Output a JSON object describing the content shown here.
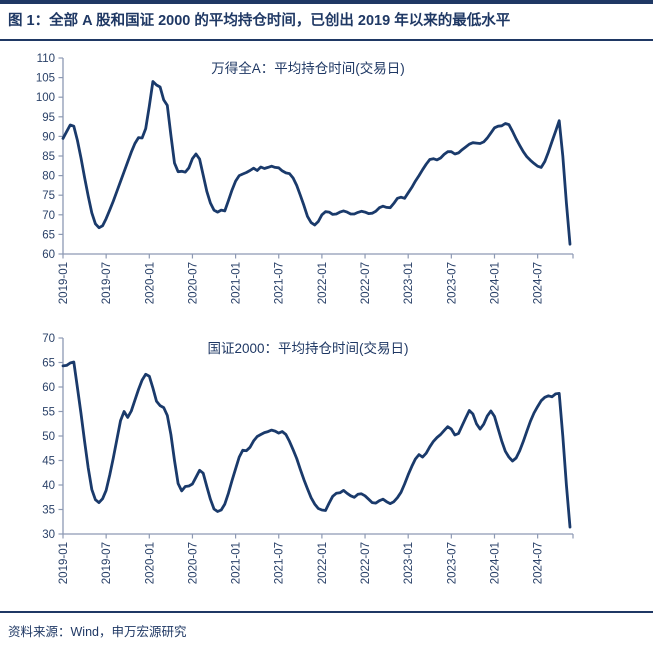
{
  "header": {
    "figure_title": "图 1：全部 A 股和国证 2000 的平均持仓时间，已创出 2019 年以来的最低水平"
  },
  "footer": {
    "source": "资料来源：Wind，申万宏源研究"
  },
  "colors": {
    "navy": "#1f3864",
    "line": "#1a3a6b",
    "axis": "#8d99b3",
    "tick_text": "#2b4269"
  },
  "chart_data": [
    {
      "type": "line",
      "title": "万得全A：平均持仓时间(交易日)",
      "ylabel": "",
      "xlabel": "",
      "ylim": [
        60,
        110
      ],
      "ytick_step": 5,
      "grid": false,
      "legend_position": "top-center-inside",
      "x_tick_labels": [
        "2019-01",
        "2019-07",
        "2020-01",
        "2020-07",
        "2021-01",
        "2021-07",
        "2022-01",
        "2022-07",
        "2023-01",
        "2023-07",
        "2024-01",
        "2024-07"
      ],
      "x_tick_every_n_points": 12,
      "series": [
        {
          "name": "万得全A：平均持仓时间(交易日)",
          "values": [
            89.5,
            91.2,
            92.9,
            92.6,
            89,
            84.5,
            79.5,
            74.8,
            70.5,
            67.7,
            66.7,
            67.2,
            69,
            71.2,
            73.5,
            76,
            78.5,
            81,
            83.5,
            86,
            88.2,
            89.7,
            89.6,
            92,
            97.7,
            104,
            103.1,
            102.6,
            99.3,
            97.9,
            90.3,
            83.2,
            81,
            81.1,
            80.9,
            82,
            84.3,
            85.5,
            84.2,
            80.1,
            76,
            73,
            71.2,
            70.7,
            71.2,
            71,
            73.6,
            76.3,
            78.6,
            80,
            80.4,
            80.8,
            81.3,
            81.9,
            81.3,
            82.2,
            81.8,
            82.1,
            82.4,
            82.1,
            82,
            81.2,
            80.7,
            80.5,
            79.4,
            77.5,
            75,
            72.4,
            69.6,
            68,
            67.4,
            68.3,
            70,
            70.8,
            70.7,
            70.1,
            70.2,
            70.7,
            71,
            70.7,
            70.2,
            70.2,
            70.6,
            70.9,
            70.7,
            70.3,
            70.4,
            70.9,
            71.8,
            72.2,
            71.9,
            71.8,
            72.9,
            74.2,
            74.5,
            74.2,
            75.6,
            77,
            78.6,
            80,
            81.5,
            82.9,
            84.1,
            84.3,
            84,
            84.5,
            85.4,
            86.1,
            86.1,
            85.5,
            85.8,
            86.6,
            87.3,
            88,
            88.4,
            88.3,
            88.2,
            88.6,
            89.6,
            90.9,
            92.2,
            92.6,
            92.7,
            93.3,
            93,
            91.3,
            89.4,
            87.7,
            86.1,
            84.8,
            83.9,
            83.1,
            82.4,
            82.1,
            83.6,
            86,
            88.7,
            91.3,
            94,
            85,
            73,
            62.5
          ]
        }
      ]
    },
    {
      "type": "line",
      "title": "国证2000：平均持仓时间(交易日)",
      "ylabel": "",
      "xlabel": "",
      "ylim": [
        30,
        70
      ],
      "ytick_step": 5,
      "grid": false,
      "legend_position": "top-center-inside",
      "x_tick_labels": [
        "2019-01",
        "2019-07",
        "2020-01",
        "2020-07",
        "2021-01",
        "2021-07",
        "2022-01",
        "2022-07",
        "2023-01",
        "2023-07",
        "2024-01",
        "2024-07"
      ],
      "x_tick_every_n_points": 12,
      "series": [
        {
          "name": "国证2000：平均持仓时间(交易日)",
          "values": [
            64.3,
            64.4,
            64.9,
            65.1,
            59.9,
            54.6,
            48.9,
            43.5,
            39.1,
            37,
            36.4,
            37.2,
            38.9,
            42,
            45.5,
            49.3,
            53.1,
            55,
            53.8,
            55.1,
            57.3,
            59.5,
            61.4,
            62.6,
            62.2,
            59.8,
            57.1,
            56.2,
            55.8,
            54.2,
            50.3,
            45,
            40.3,
            38.8,
            39.7,
            39.8,
            40.2,
            41.6,
            43,
            42.4,
            39.7,
            37.1,
            35.1,
            34.6,
            34.9,
            36.1,
            38.3,
            40.9,
            43.3,
            45.7,
            47.1,
            47,
            47.7,
            49,
            49.9,
            50.3,
            50.7,
            50.9,
            51.2,
            51,
            50.6,
            50.9,
            50.3,
            48.9,
            47.2,
            45.4,
            43.2,
            41.1,
            39.2,
            37.4,
            36.1,
            35.2,
            34.9,
            34.8,
            36.3,
            37.7,
            38.3,
            38.4,
            38.9,
            38.3,
            37.8,
            37.5,
            38.1,
            38.2,
            37.8,
            37.1,
            36.4,
            36.3,
            36.8,
            37.1,
            36.6,
            36.2,
            36.6,
            37.4,
            38.5,
            40.2,
            42.1,
            43.8,
            45.3,
            46.2,
            45.7,
            46.5,
            47.8,
            48.9,
            49.7,
            50.3,
            51.1,
            51.9,
            51.4,
            50.2,
            50.5,
            52.1,
            53.7,
            55.2,
            54.5,
            52.5,
            51.4,
            52.4,
            54.1,
            55.1,
            54,
            51.5,
            49,
            46.9,
            45.7,
            44.9,
            45.5,
            47,
            48.9,
            51,
            53,
            54.7,
            56,
            57.2,
            57.9,
            58.2,
            58,
            58.6,
            58.7,
            50,
            40,
            31.4
          ]
        }
      ]
    }
  ]
}
